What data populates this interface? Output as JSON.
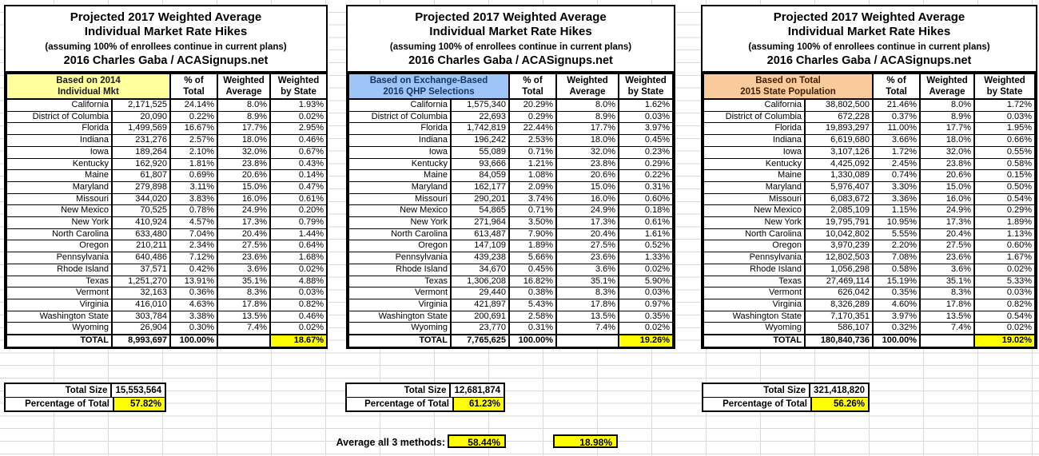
{
  "colors": {
    "highlight_yellow": "#ffff00",
    "header_fill_yellow": "#ffff9e",
    "header_fill_blue": "#9fc5f8",
    "header_fill_orange": "#f9cb9c"
  },
  "columns": {
    "pct_line1": "% of",
    "pct_line2": "Total",
    "wavg_line1": "Weighted",
    "wavg_line2": "Average",
    "wstate_line1": "Weighted",
    "wstate_line2": "by State"
  },
  "tables": [
    {
      "title_line1": "Projected 2017 Weighted Average",
      "title_line2": "Individual Market Rate Hikes",
      "subtitle": "(assuming 100% of enrollees continue in current plans)",
      "byline": "2016 Charles Gaba / ACASignups.net",
      "basis_line1": "Based on 2014",
      "basis_line2": "Individual Mkt",
      "rows": [
        [
          "California",
          "2,171,525",
          "24.14%",
          "8.0%",
          "1.93%"
        ],
        [
          "District of Columbia",
          "20,090",
          "0.22%",
          "8.9%",
          "0.02%"
        ],
        [
          "Florida",
          "1,499,569",
          "16.67%",
          "17.7%",
          "2.95%"
        ],
        [
          "Indiana",
          "231,276",
          "2.57%",
          "18.0%",
          "0.46%"
        ],
        [
          "Iowa",
          "189,264",
          "2.10%",
          "32.0%",
          "0.67%"
        ],
        [
          "Kentucky",
          "162,920",
          "1.81%",
          "23.8%",
          "0.43%"
        ],
        [
          "Maine",
          "61,807",
          "0.69%",
          "20.6%",
          "0.14%"
        ],
        [
          "Maryland",
          "279,898",
          "3.11%",
          "15.0%",
          "0.47%"
        ],
        [
          "Missouri",
          "344,020",
          "3.83%",
          "16.0%",
          "0.61%"
        ],
        [
          "New Mexico",
          "70,525",
          "0.78%",
          "24.9%",
          "0.20%"
        ],
        [
          "New York",
          "410,924",
          "4.57%",
          "17.3%",
          "0.79%"
        ],
        [
          "North Carolina",
          "633,480",
          "7.04%",
          "20.4%",
          "1.44%"
        ],
        [
          "Oregon",
          "210,211",
          "2.34%",
          "27.5%",
          "0.64%"
        ],
        [
          "Pennsylvania",
          "640,486",
          "7.12%",
          "23.6%",
          "1.68%"
        ],
        [
          "Rhode Island",
          "37,571",
          "0.42%",
          "3.6%",
          "0.02%"
        ],
        [
          "Texas",
          "1,251,270",
          "13.91%",
          "35.1%",
          "4.88%"
        ],
        [
          "Vermont",
          "32,163",
          "0.36%",
          "8.3%",
          "0.03%"
        ],
        [
          "Virginia",
          "416,010",
          "4.63%",
          "17.8%",
          "0.82%"
        ],
        [
          "Washington State",
          "303,784",
          "3.38%",
          "13.5%",
          "0.46%"
        ],
        [
          "Wyoming",
          "26,904",
          "0.30%",
          "7.4%",
          "0.02%"
        ]
      ],
      "total": {
        "label": "TOTAL",
        "size": "8,993,697",
        "pct": "100.00%",
        "weighted": "18.67%"
      },
      "footer": {
        "size_label": "Total Size",
        "size_value": "15,553,564",
        "pct_label": "Percentage of Total",
        "pct_value": "57.82%"
      }
    },
    {
      "title_line1": "Projected 2017 Weighted Average",
      "title_line2": "Individual Market Rate Hikes",
      "subtitle": "(assuming 100% of enrollees continue in current plans)",
      "byline": "2016 Charles Gaba / ACASignups.net",
      "basis_line1": "Based on Exchange-Based",
      "basis_line2": "2016 QHP Selections",
      "rows": [
        [
          "California",
          "1,575,340",
          "20.29%",
          "8.0%",
          "1.62%"
        ],
        [
          "District of Columbia",
          "22,693",
          "0.29%",
          "8.9%",
          "0.03%"
        ],
        [
          "Florida",
          "1,742,819",
          "22.44%",
          "17.7%",
          "3.97%"
        ],
        [
          "Indiana",
          "196,242",
          "2.53%",
          "18.0%",
          "0.45%"
        ],
        [
          "Iowa",
          "55,089",
          "0.71%",
          "32.0%",
          "0.23%"
        ],
        [
          "Kentucky",
          "93,666",
          "1.21%",
          "23.8%",
          "0.29%"
        ],
        [
          "Maine",
          "84,059",
          "1.08%",
          "20.6%",
          "0.22%"
        ],
        [
          "Maryland",
          "162,177",
          "2.09%",
          "15.0%",
          "0.31%"
        ],
        [
          "Missouri",
          "290,201",
          "3.74%",
          "16.0%",
          "0.60%"
        ],
        [
          "New Mexico",
          "54,865",
          "0.71%",
          "24.9%",
          "0.18%"
        ],
        [
          "New York",
          "271,964",
          "3.50%",
          "17.3%",
          "0.61%"
        ],
        [
          "North Carolina",
          "613,487",
          "7.90%",
          "20.4%",
          "1.61%"
        ],
        [
          "Oregon",
          "147,109",
          "1.89%",
          "27.5%",
          "0.52%"
        ],
        [
          "Pennsylvania",
          "439,238",
          "5.66%",
          "23.6%",
          "1.33%"
        ],
        [
          "Rhode Island",
          "34,670",
          "0.45%",
          "3.6%",
          "0.02%"
        ],
        [
          "Texas",
          "1,306,208",
          "16.82%",
          "35.1%",
          "5.90%"
        ],
        [
          "Vermont",
          "29,440",
          "0.38%",
          "8.3%",
          "0.03%"
        ],
        [
          "Virginia",
          "421,897",
          "5.43%",
          "17.8%",
          "0.97%"
        ],
        [
          "Washington State",
          "200,691",
          "2.58%",
          "13.5%",
          "0.35%"
        ],
        [
          "Wyoming",
          "23,770",
          "0.31%",
          "7.4%",
          "0.02%"
        ]
      ],
      "total": {
        "label": "TOTAL",
        "size": "7,765,625",
        "pct": "100.00%",
        "weighted": "19.26%"
      },
      "footer": {
        "size_label": "Total Size",
        "size_value": "12,681,874",
        "pct_label": "Percentage of Total",
        "pct_value": "61.23%"
      }
    },
    {
      "title_line1": "Projected 2017 Weighted Average",
      "title_line2": "Individual Market Rate Hikes",
      "subtitle": "(assuming 100% of enrollees continue in current plans)",
      "byline": "2016 Charles Gaba / ACASignups.net",
      "basis_line1": "Based on Total",
      "basis_line2": "2015 State Population",
      "rows": [
        [
          "California",
          "38,802,500",
          "21.46%",
          "8.0%",
          "1.72%"
        ],
        [
          "District of Columbia",
          "672,228",
          "0.37%",
          "8.9%",
          "0.03%"
        ],
        [
          "Florida",
          "19,893,297",
          "11.00%",
          "17.7%",
          "1.95%"
        ],
        [
          "Indiana",
          "6,619,680",
          "3.66%",
          "18.0%",
          "0.66%"
        ],
        [
          "Iowa",
          "3,107,126",
          "1.72%",
          "32.0%",
          "0.55%"
        ],
        [
          "Kentucky",
          "4,425,092",
          "2.45%",
          "23.8%",
          "0.58%"
        ],
        [
          "Maine",
          "1,330,089",
          "0.74%",
          "20.6%",
          "0.15%"
        ],
        [
          "Maryland",
          "5,976,407",
          "3.30%",
          "15.0%",
          "0.50%"
        ],
        [
          "Missouri",
          "6,083,672",
          "3.36%",
          "16.0%",
          "0.54%"
        ],
        [
          "New Mexico",
          "2,085,109",
          "1.15%",
          "24.9%",
          "0.29%"
        ],
        [
          "New York",
          "19,795,791",
          "10.95%",
          "17.3%",
          "1.89%"
        ],
        [
          "North Carolina",
          "10,042,802",
          "5.55%",
          "20.4%",
          "1.13%"
        ],
        [
          "Oregon",
          "3,970,239",
          "2.20%",
          "27.5%",
          "0.60%"
        ],
        [
          "Pennsylvania",
          "12,802,503",
          "7.08%",
          "23.6%",
          "1.67%"
        ],
        [
          "Rhode Island",
          "1,056,298",
          "0.58%",
          "3.6%",
          "0.02%"
        ],
        [
          "Texas",
          "27,469,114",
          "15.19%",
          "35.1%",
          "5.33%"
        ],
        [
          "Vermont",
          "626,042",
          "0.35%",
          "8.3%",
          "0.03%"
        ],
        [
          "Virginia",
          "8,326,289",
          "4.60%",
          "17.8%",
          "0.82%"
        ],
        [
          "Washington State",
          "7,170,351",
          "3.97%",
          "13.5%",
          "0.54%"
        ],
        [
          "Wyoming",
          "586,107",
          "0.32%",
          "7.4%",
          "0.02%"
        ]
      ],
      "total": {
        "label": "TOTAL",
        "size": "180,840,736",
        "pct": "100.00%",
        "weighted": "19.02%"
      },
      "footer": {
        "size_label": "Total Size",
        "size_value": "321,418,820",
        "pct_label": "Percentage of Total",
        "pct_value": "56.26%"
      }
    }
  ],
  "summary": {
    "label": "Average all 3 methods:",
    "value_size_weighted": "58.44%",
    "value_rate_weighted": "18.98%"
  }
}
